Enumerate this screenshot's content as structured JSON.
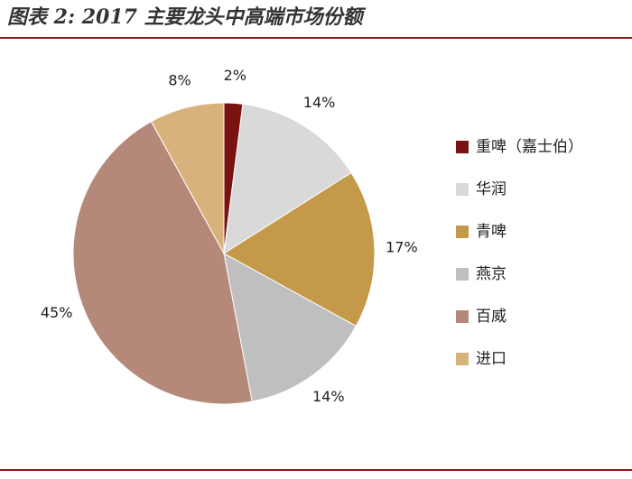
{
  "chart_data": {
    "type": "pie",
    "title": "图表 2: 2017 主要龙头中高端市场份额",
    "categories": [
      "重啤（嘉士伯）",
      "华润",
      "青啤",
      "燕京",
      "百威",
      "进口"
    ],
    "values": [
      2,
      14,
      17,
      14,
      45,
      8
    ],
    "value_labels": [
      "2%",
      "14%",
      "17%",
      "14%",
      "45%",
      "8%"
    ],
    "colors": [
      "#7a1212",
      "#d9d9d9",
      "#c49a4a",
      "#bfbfbf",
      "#b5897a",
      "#d8b27c"
    ],
    "legend": "right"
  }
}
